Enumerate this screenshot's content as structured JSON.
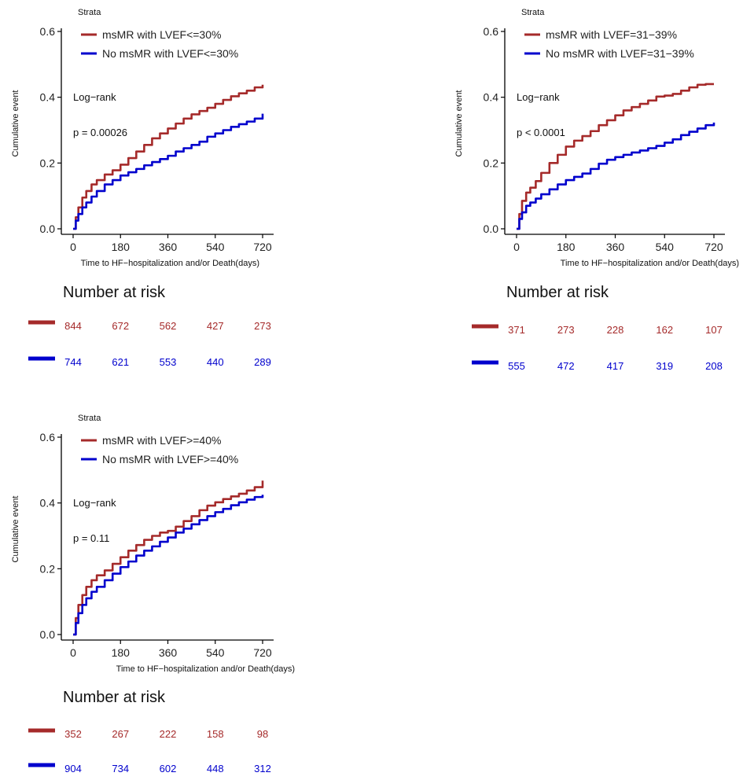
{
  "colors": {
    "ms": "#a52a2a",
    "no": "#0000cd",
    "axis": "#000000"
  },
  "chart_data": [
    {
      "type": "line",
      "legend_title": "Strata",
      "xlabel": "Time to HF−hospitalization and/or Death(days)",
      "ylabel": "Cumulative event",
      "xlim": [
        0,
        750
      ],
      "ylim": [
        0,
        0.6
      ],
      "xticks": [
        "0",
        "180",
        "360",
        "540",
        "720"
      ],
      "yticks": [
        "0.0",
        "0.2",
        "0.4",
        "0.6"
      ],
      "annotation_test": "Log−rank",
      "annotation_p": "p = 0.00026",
      "risk_title": "Number at risk",
      "series": [
        {
          "name": "msMR with LVEF<=30%",
          "color": "#a52a2a",
          "x": [
            0,
            10,
            20,
            35,
            50,
            70,
            90,
            120,
            150,
            180,
            210,
            240,
            270,
            300,
            330,
            360,
            390,
            420,
            450,
            480,
            510,
            540,
            570,
            600,
            630,
            660,
            690,
            720
          ],
          "y": [
            0,
            0.035,
            0.065,
            0.095,
            0.115,
            0.135,
            0.148,
            0.165,
            0.178,
            0.195,
            0.215,
            0.235,
            0.255,
            0.275,
            0.29,
            0.305,
            0.32,
            0.335,
            0.348,
            0.358,
            0.368,
            0.38,
            0.392,
            0.403,
            0.412,
            0.42,
            0.43,
            0.438
          ],
          "risk": [
            "844",
            "672",
            "562",
            "427",
            "273"
          ]
        },
        {
          "name": "No msMR with LVEF<=30%",
          "color": "#0000cd",
          "x": [
            0,
            10,
            20,
            35,
            50,
            70,
            90,
            120,
            150,
            180,
            210,
            240,
            270,
            300,
            330,
            360,
            390,
            420,
            450,
            480,
            510,
            540,
            570,
            600,
            630,
            660,
            690,
            720
          ],
          "y": [
            0,
            0.025,
            0.045,
            0.065,
            0.08,
            0.098,
            0.115,
            0.135,
            0.148,
            0.162,
            0.172,
            0.182,
            0.193,
            0.203,
            0.212,
            0.222,
            0.235,
            0.245,
            0.255,
            0.265,
            0.28,
            0.29,
            0.3,
            0.31,
            0.318,
            0.326,
            0.335,
            0.35
          ],
          "risk": [
            "744",
            "621",
            "553",
            "440",
            "289"
          ]
        }
      ]
    },
    {
      "type": "line",
      "legend_title": "Strata",
      "xlabel": "Time to HF−hospitalization and/or Death(days)",
      "ylabel": "Cumulative event",
      "xlim": [
        0,
        750
      ],
      "ylim": [
        0,
        0.6
      ],
      "xticks": [
        "0",
        "180",
        "360",
        "540",
        "720"
      ],
      "yticks": [
        "0.0",
        "0.2",
        "0.4",
        "0.6"
      ],
      "annotation_test": "Log−rank",
      "annotation_p": "p < 0.0001",
      "risk_title": "Number at risk",
      "series": [
        {
          "name": "msMR with LVEF=31−39%",
          "color": "#a52a2a",
          "x": [
            0,
            10,
            20,
            35,
            50,
            70,
            90,
            120,
            150,
            180,
            210,
            240,
            270,
            300,
            330,
            360,
            390,
            420,
            450,
            480,
            510,
            540,
            570,
            600,
            630,
            660,
            690,
            720
          ],
          "y": [
            0,
            0.045,
            0.085,
            0.11,
            0.125,
            0.145,
            0.17,
            0.2,
            0.225,
            0.25,
            0.268,
            0.282,
            0.297,
            0.315,
            0.33,
            0.345,
            0.36,
            0.37,
            0.38,
            0.39,
            0.402,
            0.405,
            0.41,
            0.42,
            0.43,
            0.438,
            0.44,
            0.44
          ],
          "risk": [
            "371",
            "273",
            "228",
            "162",
            "107"
          ]
        },
        {
          "name": "No msMR with LVEF=31−39%",
          "color": "#0000cd",
          "x": [
            0,
            10,
            20,
            35,
            50,
            70,
            90,
            120,
            150,
            180,
            210,
            240,
            270,
            300,
            330,
            360,
            390,
            420,
            450,
            480,
            510,
            540,
            570,
            600,
            630,
            660,
            690,
            720
          ],
          "y": [
            0,
            0.03,
            0.05,
            0.07,
            0.08,
            0.092,
            0.105,
            0.12,
            0.135,
            0.148,
            0.158,
            0.168,
            0.182,
            0.198,
            0.21,
            0.218,
            0.225,
            0.232,
            0.238,
            0.245,
            0.252,
            0.262,
            0.272,
            0.285,
            0.295,
            0.305,
            0.315,
            0.323
          ],
          "risk": [
            "555",
            "472",
            "417",
            "319",
            "208"
          ]
        }
      ]
    },
    {
      "type": "line",
      "legend_title": "Strata",
      "xlabel": "Time to HF−hospitalization and/or Death(days)",
      "ylabel": "Cumulative event",
      "xlim": [
        0,
        750
      ],
      "ylim": [
        0,
        0.6
      ],
      "xticks": [
        "0",
        "180",
        "360",
        "540",
        "720"
      ],
      "yticks": [
        "0.0",
        "0.2",
        "0.4",
        "0.6"
      ],
      "annotation_test": "Log−rank",
      "annotation_p": "p = 0.11",
      "risk_title": "Number at risk",
      "series": [
        {
          "name": "msMR with LVEF>=40%",
          "color": "#a52a2a",
          "x": [
            0,
            10,
            20,
            35,
            50,
            70,
            90,
            120,
            150,
            180,
            210,
            240,
            270,
            300,
            330,
            360,
            390,
            420,
            450,
            480,
            510,
            540,
            570,
            600,
            630,
            660,
            690,
            720
          ],
          "y": [
            0,
            0.05,
            0.09,
            0.12,
            0.145,
            0.165,
            0.18,
            0.195,
            0.215,
            0.235,
            0.255,
            0.272,
            0.288,
            0.3,
            0.31,
            0.315,
            0.328,
            0.345,
            0.36,
            0.378,
            0.392,
            0.402,
            0.412,
            0.42,
            0.428,
            0.438,
            0.448,
            0.468
          ],
          "risk": [
            "352",
            "267",
            "222",
            "158",
            "98"
          ]
        },
        {
          "name": "No msMR with LVEF>=40%",
          "color": "#0000cd",
          "x": [
            0,
            10,
            20,
            35,
            50,
            70,
            90,
            120,
            150,
            180,
            210,
            240,
            270,
            300,
            330,
            360,
            390,
            420,
            450,
            480,
            510,
            540,
            570,
            600,
            630,
            660,
            690,
            720
          ],
          "y": [
            0,
            0.035,
            0.065,
            0.09,
            0.11,
            0.13,
            0.145,
            0.165,
            0.185,
            0.205,
            0.222,
            0.24,
            0.255,
            0.268,
            0.282,
            0.295,
            0.31,
            0.322,
            0.335,
            0.348,
            0.36,
            0.372,
            0.382,
            0.393,
            0.402,
            0.41,
            0.418,
            0.425
          ],
          "risk": [
            "904",
            "734",
            "602",
            "448",
            "312"
          ]
        }
      ]
    }
  ]
}
